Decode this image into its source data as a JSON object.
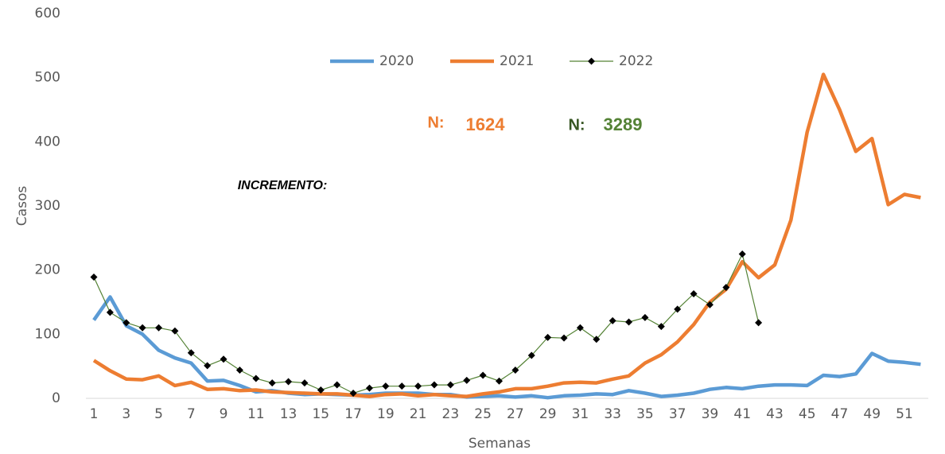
{
  "chart_data": {
    "type": "line",
    "y_label": "Casos",
    "x_label": "Semanas",
    "categories": [
      1,
      null,
      3,
      null,
      5,
      null,
      7,
      null,
      9,
      null,
      11,
      null,
      13,
      null,
      15,
      null,
      17,
      null,
      19,
      null,
      21,
      null,
      23,
      null,
      25,
      null,
      27,
      null,
      29,
      null,
      31,
      null,
      33,
      null,
      35,
      null,
      37,
      null,
      39,
      null,
      41,
      null,
      43,
      null,
      45,
      null,
      47,
      null,
      49,
      null,
      51,
      null
    ],
    "series": [
      {
        "name": "2020",
        "color": "#5b9bd5",
        "values": [
          122,
          158,
          113,
          100,
          75,
          63,
          55,
          27,
          28,
          20,
          10,
          12,
          8,
          6,
          7,
          6,
          5,
          6,
          8,
          8,
          8,
          6,
          6,
          2,
          3,
          4,
          2,
          4,
          1,
          4,
          5,
          7,
          6,
          12,
          8,
          3,
          5,
          8,
          14,
          17,
          15,
          19,
          21,
          21,
          20,
          36,
          34,
          38,
          70,
          58,
          56,
          53
        ]
      },
      {
        "name": "2021",
        "color": "#ed7d31",
        "values": [
          59,
          43,
          30,
          29,
          35,
          20,
          25,
          14,
          15,
          12,
          13,
          10,
          9,
          8,
          7,
          7,
          5,
          3,
          6,
          7,
          4,
          6,
          4,
          3,
          7,
          10,
          15,
          15,
          19,
          24,
          25,
          24,
          30,
          35,
          55,
          68,
          88,
          115,
          150,
          170,
          213,
          188,
          208,
          278,
          415,
          505,
          450,
          385,
          405,
          302,
          318,
          313
        ]
      },
      {
        "name": "2022",
        "color": "#548235",
        "marker_color": "#000000",
        "values": [
          189,
          134,
          118,
          110,
          110,
          105,
          71,
          51,
          61,
          44,
          31,
          24,
          26,
          24,
          13,
          21,
          8,
          16,
          19,
          19,
          19,
          21,
          21,
          28,
          36,
          27,
          44,
          67,
          95,
          94,
          110,
          92,
          121,
          119,
          126,
          112,
          139,
          163,
          146,
          173,
          225,
          118,
          null,
          null,
          null,
          null,
          null,
          null,
          null,
          null,
          null,
          null
        ]
      }
    ],
    "annotations": [
      {
        "text": "N:",
        "color": "#ed7d31"
      },
      {
        "text": "1624",
        "color": "#ed7d31"
      },
      {
        "text": "N:",
        "color": "#375623"
      },
      {
        "text": "3289",
        "color": "#548235"
      },
      {
        "text": "INCREMENTO:",
        "color": "#000000"
      }
    ],
    "ylim": [
      0,
      600
    ],
    "yticks": [
      0,
      100,
      200,
      300,
      400,
      500,
      600
    ],
    "grid": false,
    "legend": "top"
  }
}
